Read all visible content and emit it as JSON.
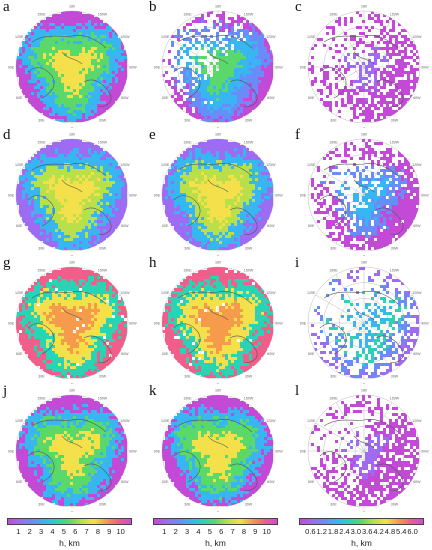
{
  "panels": [
    {
      "label": "a",
      "style": "total_wide"
    },
    {
      "label": "b",
      "style": "low_wide"
    },
    {
      "label": "c",
      "style": "diff_sparse"
    },
    {
      "label": "d",
      "style": "total_mid"
    },
    {
      "label": "e",
      "style": "total_mid"
    },
    {
      "label": "f",
      "style": "diff_mid"
    },
    {
      "label": "g",
      "style": "total_high"
    },
    {
      "label": "h",
      "style": "total_high"
    },
    {
      "label": "i",
      "style": "diff_low"
    },
    {
      "label": "j",
      "style": "total_wide"
    },
    {
      "label": "k",
      "style": "total_wide"
    },
    {
      "label": "l",
      "style": "diff_sparse"
    }
  ],
  "colorbars": [
    {
      "ticks": [
        "1",
        "2",
        "3",
        "4",
        "5",
        "6",
        "7",
        "8",
        "9",
        "10"
      ],
      "unit": "h, km",
      "colors": [
        "#c24ad6",
        "#9d6cf2",
        "#6a8cf8",
        "#37b6f2",
        "#2bd3b5",
        "#5ad86a",
        "#b9e04a",
        "#f4e04a",
        "#f59b4b",
        "#f25d8a",
        "#d04cd6"
      ]
    },
    {
      "ticks": [
        "1",
        "2",
        "3",
        "4",
        "5",
        "6",
        "7",
        "8",
        "9",
        "10"
      ],
      "unit": "h, km",
      "colors": [
        "#c24ad6",
        "#9d6cf2",
        "#6a8cf8",
        "#37b6f2",
        "#2bd3b5",
        "#5ad86a",
        "#b9e04a",
        "#f4e04a",
        "#f59b4b",
        "#f25d8a",
        "#d04cd6"
      ]
    },
    {
      "ticks": [
        "0.6",
        "1.2",
        "1.8",
        "2.4",
        "3.0",
        "3.6",
        "4.2",
        "4.8",
        "5.4",
        "6.0"
      ],
      "unit": "h, km",
      "colors": [
        "#c24ad6",
        "#9d6cf2",
        "#6a8cf8",
        "#37b6f2",
        "#2bd3b5",
        "#5ad86a",
        "#b9e04a",
        "#f4e04a",
        "#f59b4b",
        "#f25d8a",
        "#d04cd6"
      ]
    }
  ],
  "map_labels": {
    "longitudes": [
      "150W",
      "120W",
      "90W",
      "60W",
      "30W",
      "0",
      "30E",
      "60E",
      "90E",
      "120E",
      "150E",
      "180"
    ],
    "latitudes": [
      "80N",
      "70N",
      "60N"
    ]
  }
}
